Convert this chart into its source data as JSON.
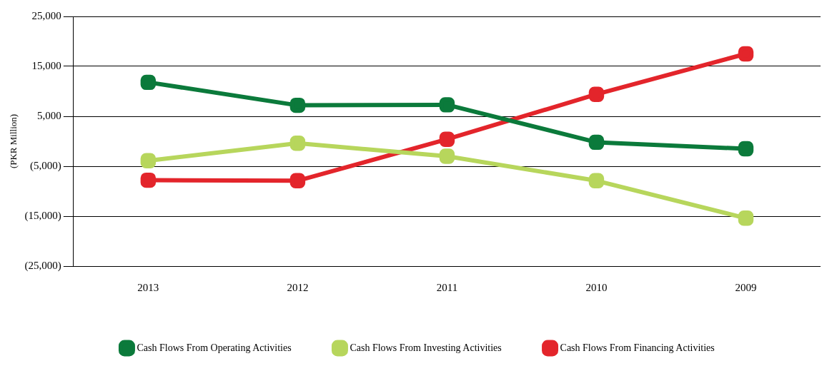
{
  "chart_data": {
    "type": "line",
    "ylabel": "(PKR Million)",
    "categories": [
      "2013",
      "2012",
      "2011",
      "2010",
      "2009"
    ],
    "series": [
      {
        "name": "Cash Flows From Operating Activities",
        "color": "#0b7a3b",
        "values": [
          11800,
          7200,
          7300,
          -200,
          -1500
        ]
      },
      {
        "name": "Cash Flows From Investing Activities",
        "color": "#b7d65c",
        "values": [
          -3900,
          -400,
          -3000,
          -7900,
          -15400
        ]
      },
      {
        "name": "Cash Flows From Financing Activities",
        "color": "#e3252b",
        "values": [
          -7800,
          -7900,
          400,
          9400,
          17500
        ]
      }
    ],
    "ylim": [
      -25000,
      25000
    ],
    "yticks": [
      {
        "value": -25000,
        "label": "(25,000)"
      },
      {
        "value": -15000,
        "label": "(15,000)"
      },
      {
        "value": -5000,
        "label": "(5,000)"
      },
      {
        "value": 5000,
        "label": "5,000"
      },
      {
        "value": 15000,
        "label": "15,000"
      },
      {
        "value": 25000,
        "label": "25,000"
      }
    ],
    "grid": "y",
    "legend": "bottom",
    "marker": "square",
    "line_style": "solid"
  }
}
